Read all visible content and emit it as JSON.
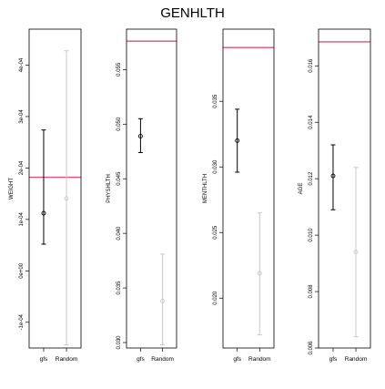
{
  "title": "GENHLTH",
  "colors": {
    "reference_line": "#e0507a",
    "gfs_series": "#000000",
    "random_series": "#c8c8c8",
    "frame": "#000000"
  },
  "chart_data": [
    {
      "type": "scatter",
      "ylabel": "WEIGHT",
      "categories": [
        "gfs",
        "Random"
      ],
      "ylim": [
        -0.00015,
        0.00047
      ],
      "yticks": [
        -0.0001,
        0,
        0.0001,
        0.0002,
        0.0003,
        0.0004
      ],
      "ytick_labels": [
        "-1e-04",
        "0e+00",
        "1e-04",
        "2e-04",
        "3e-04",
        "4e-04"
      ],
      "reference_line": 0.000182,
      "series": [
        {
          "name": "gfs",
          "value": 0.000112,
          "lower": 5.2e-05,
          "upper": 0.000274
        },
        {
          "name": "Random",
          "value": 0.000141,
          "lower": -0.000144,
          "upper": 0.000428
        }
      ]
    },
    {
      "type": "scatter",
      "ylabel": "PHYSHLTH",
      "categories": [
        "gfs",
        "Random"
      ],
      "ylim": [
        0.0295,
        0.0587
      ],
      "yticks": [
        0.03,
        0.035,
        0.04,
        0.045,
        0.05,
        0.055
      ],
      "ytick_labels": [
        "0.030",
        "0.035",
        "0.040",
        "0.045",
        "0.050",
        "0.055"
      ],
      "reference_line": 0.0576,
      "series": [
        {
          "name": "gfs",
          "value": 0.0489,
          "lower": 0.0474,
          "upper": 0.0505
        },
        {
          "name": "Random",
          "value": 0.0338,
          "lower": 0.0298,
          "upper": 0.0381
        }
      ]
    },
    {
      "type": "scatter",
      "ylabel": "MENTHLTH",
      "categories": [
        "gfs",
        "Random"
      ],
      "ylim": [
        0.0162,
        0.0405
      ],
      "yticks": [
        0.02,
        0.025,
        0.03,
        0.035
      ],
      "ytick_labels": [
        "0.020",
        "0.025",
        "0.030",
        "0.035"
      ],
      "reference_line": 0.0391,
      "series": [
        {
          "name": "gfs",
          "value": 0.032,
          "lower": 0.0296,
          "upper": 0.0344
        },
        {
          "name": "Random",
          "value": 0.0219,
          "lower": 0.0172,
          "upper": 0.0265
        }
      ]
    },
    {
      "type": "scatter",
      "ylabel": "AGE",
      "categories": [
        "gfs",
        "Random"
      ],
      "ylim": [
        0.006,
        0.0173
      ],
      "yticks": [
        0.006,
        0.008,
        0.01,
        0.012,
        0.014,
        0.016
      ],
      "ytick_labels": [
        "0.006",
        "0.008",
        "0.010",
        "0.012",
        "0.014",
        "0.016"
      ],
      "reference_line": 0.01685,
      "series": [
        {
          "name": "gfs",
          "value": 0.0121,
          "lower": 0.0109,
          "upper": 0.0132
        },
        {
          "name": "Random",
          "value": 0.0094,
          "lower": 0.0064,
          "upper": 0.0124
        }
      ]
    }
  ]
}
